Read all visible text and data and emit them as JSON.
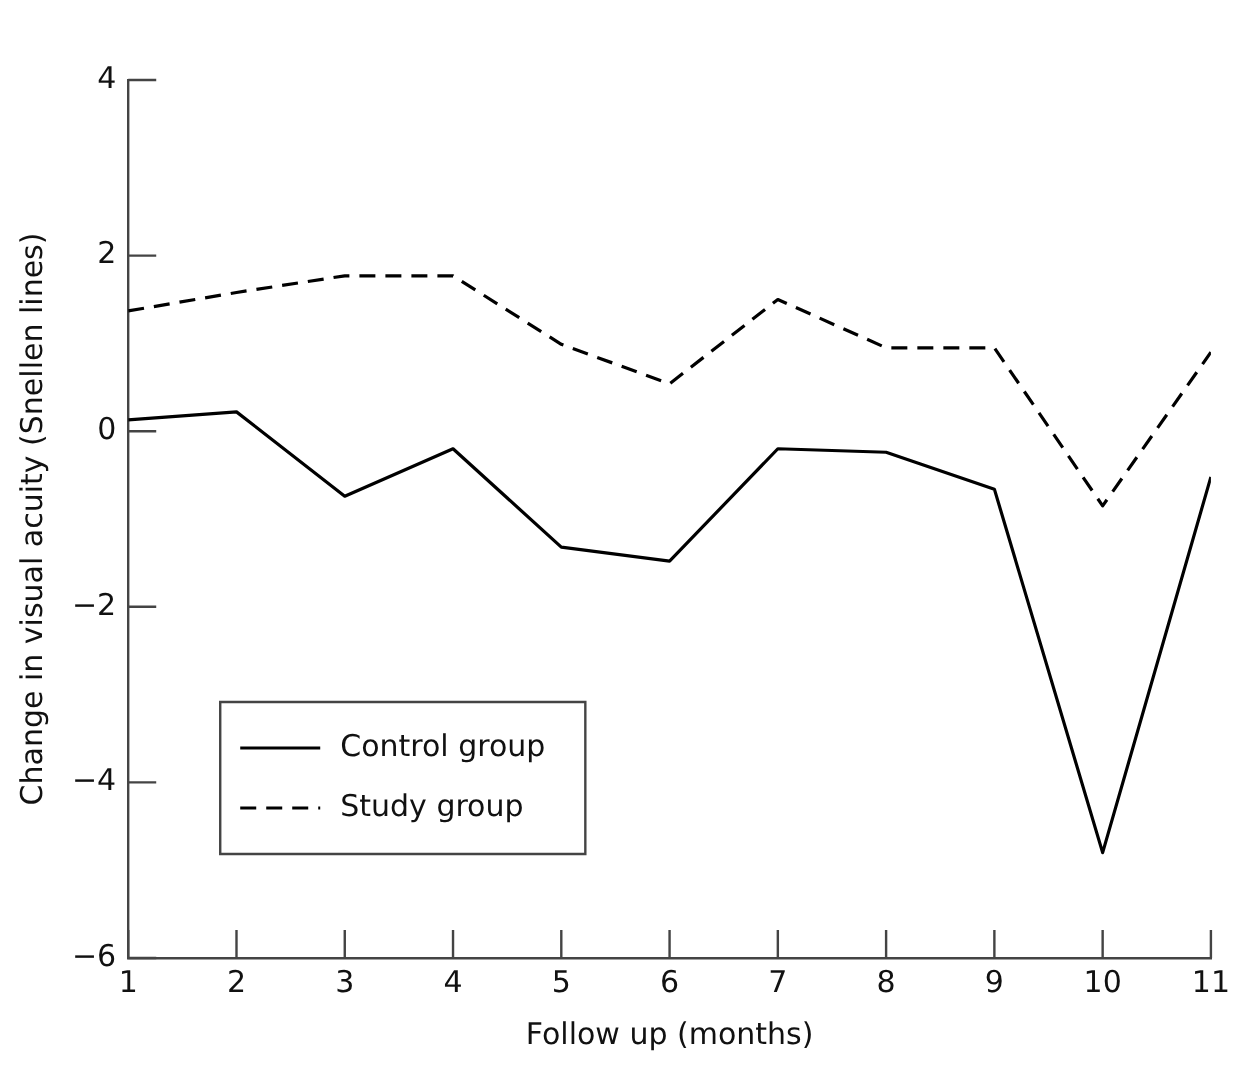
{
  "chart_data": {
    "type": "line",
    "xlabel": "Follow up (months)",
    "ylabel": "Change in visual acuity (Snellen lines)",
    "x": [
      1,
      2,
      3,
      4,
      5,
      6,
      7,
      8,
      9,
      10,
      11
    ],
    "xlim": [
      1,
      11
    ],
    "xticks": [
      1,
      2,
      3,
      4,
      5,
      6,
      7,
      8,
      9,
      10,
      11
    ],
    "ylim": [
      -6,
      4
    ],
    "yticks": [
      -6,
      -4,
      -2,
      0,
      2,
      4
    ],
    "grid": false,
    "legend": "bottom left",
    "marker": "none",
    "series": [
      {
        "name": "Control group",
        "color": "#000000",
        "line_style": "solid",
        "values": [
          0.13,
          0.22,
          -0.74,
          -0.2,
          -1.32,
          -1.48,
          -0.2,
          -0.24,
          -0.66,
          -4.8,
          -0.52
        ]
      },
      {
        "name": "Study group",
        "color": "#000000",
        "line_style": "dashed",
        "values": [
          1.37,
          1.58,
          1.77,
          1.77,
          0.99,
          0.54,
          1.5,
          0.95,
          0.95,
          -0.85,
          0.9
        ]
      }
    ]
  }
}
